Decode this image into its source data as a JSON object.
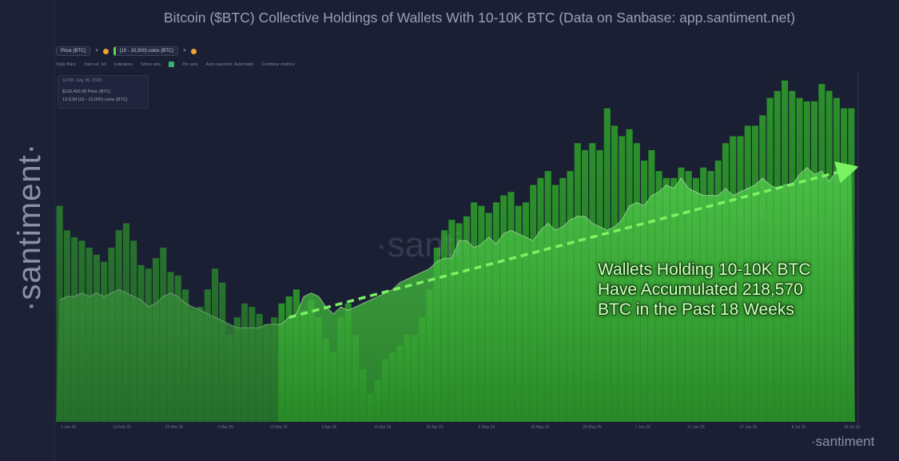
{
  "title": "Bitcoin ($BTC) Collective Holdings of Wallets With 10-10K BTC (Data on Sanbase: app.santiment.net)",
  "brand": {
    "vertical": "·santiment·",
    "bottom": "·santiment",
    "watermark": "·santi"
  },
  "toolbar": {
    "price_tab": "Price (BTC)",
    "holdings_tab": "[10 - 10,000) coins (BTC)",
    "close_glyph": "×"
  },
  "subbar": {
    "style": "Style Bars",
    "interval": "Interval: 3d",
    "indicators": "Indicators",
    "show_axis": "Show axis",
    "pin_axis": "Pin axis",
    "axis_max": "Axis max/min: Automatic",
    "combine": "Combine metrics"
  },
  "tooltip": {
    "date": "10:00, July 30, 2025",
    "price": "$118,430.98 Price (BTC)",
    "holdings": "13.61M [10 - 10,000) coins (BTC)"
  },
  "annotation": {
    "line1": "Wallets Holding 10-10K BTC",
    "line2": "Have Accumulated 218,570",
    "line3": "BTC in the Past 18 Weeks"
  },
  "colors": {
    "bars": "#2f9b2f",
    "area": "#3cb63a",
    "arrow": "#7cf263",
    "background": "#1b1f33"
  },
  "chart_data": {
    "type": "bar",
    "x_ticks": [
      "1 Jan 25",
      "13 Feb 25",
      "23 Mar 25",
      "3 Mar 25",
      "13 Mar 25",
      "3 Apr 25",
      "15 Apr 25",
      "25 Apr 25",
      "6 May 25",
      "18 May 25",
      "28 May 25",
      "7 Jun 25",
      "17 Jun 25",
      "27 Jun 25",
      "8 Jul 25",
      "18 Jul 25"
    ],
    "series": [
      {
        "kind": "bars",
        "values": [
          0.62,
          0.55,
          0.53,
          0.52,
          0.5,
          0.48,
          0.46,
          0.5,
          0.55,
          0.57,
          0.52,
          0.45,
          0.44,
          0.47,
          0.5,
          0.43,
          0.42,
          0.38,
          0.32,
          0.33,
          0.38,
          0.44,
          0.4,
          0.25,
          0.3,
          0.34,
          0.33,
          0.31,
          0.28,
          0.3,
          0.34,
          0.36,
          0.38,
          0.32,
          0.35,
          0.3,
          0.24,
          0.2,
          0.3,
          0.34,
          0.25,
          0.15,
          0.08,
          0.12,
          0.18,
          0.2,
          0.22,
          0.25,
          0.25,
          0.3,
          0.38,
          0.5,
          0.55,
          0.58,
          0.57,
          0.59,
          0.63,
          0.62,
          0.6,
          0.63,
          0.65,
          0.66,
          0.62,
          0.63,
          0.68,
          0.7,
          0.72,
          0.68,
          0.7,
          0.72,
          0.8,
          0.78,
          0.8,
          0.78,
          0.9,
          0.85,
          0.82,
          0.84,
          0.8,
          0.75,
          0.78,
          0.72,
          0.7,
          0.7,
          0.73,
          0.72,
          0.7,
          0.73,
          0.72,
          0.75,
          0.8,
          0.82,
          0.82,
          0.85,
          0.85,
          0.88,
          0.93,
          0.95,
          0.98,
          0.95,
          0.93,
          0.92,
          0.92,
          0.97,
          0.95,
          0.93,
          0.9,
          0.9
        ]
      },
      {
        "kind": "area",
        "values": [
          0.35,
          0.36,
          0.36,
          0.37,
          0.36,
          0.37,
          0.36,
          0.37,
          0.38,
          0.37,
          0.36,
          0.35,
          0.33,
          0.34,
          0.36,
          0.37,
          0.36,
          0.34,
          0.33,
          0.32,
          0.31,
          0.3,
          0.29,
          0.28,
          0.27,
          0.27,
          0.27,
          0.27,
          0.28,
          0.28,
          0.28,
          0.3,
          0.31,
          0.36,
          0.37,
          0.36,
          0.33,
          0.31,
          0.33,
          0.32,
          0.33,
          0.34,
          0.35,
          0.36,
          0.37,
          0.38,
          0.4,
          0.41,
          0.42,
          0.43,
          0.44,
          0.46,
          0.47,
          0.47,
          0.52,
          0.52,
          0.5,
          0.51,
          0.53,
          0.51,
          0.54,
          0.55,
          0.54,
          0.53,
          0.52,
          0.55,
          0.57,
          0.55,
          0.56,
          0.58,
          0.59,
          0.59,
          0.57,
          0.56,
          0.55,
          0.56,
          0.58,
          0.62,
          0.63,
          0.62,
          0.65,
          0.66,
          0.68,
          0.67,
          0.7,
          0.67,
          0.66,
          0.65,
          0.65,
          0.65,
          0.67,
          0.65,
          0.66,
          0.67,
          0.68,
          0.7,
          0.68,
          0.67,
          0.68,
          0.68,
          0.71,
          0.73,
          0.71,
          0.72,
          0.69,
          0.72,
          0.73,
          0.72
        ]
      }
    ],
    "trend_arrow": {
      "from_index": 31,
      "to_index": 107
    }
  }
}
